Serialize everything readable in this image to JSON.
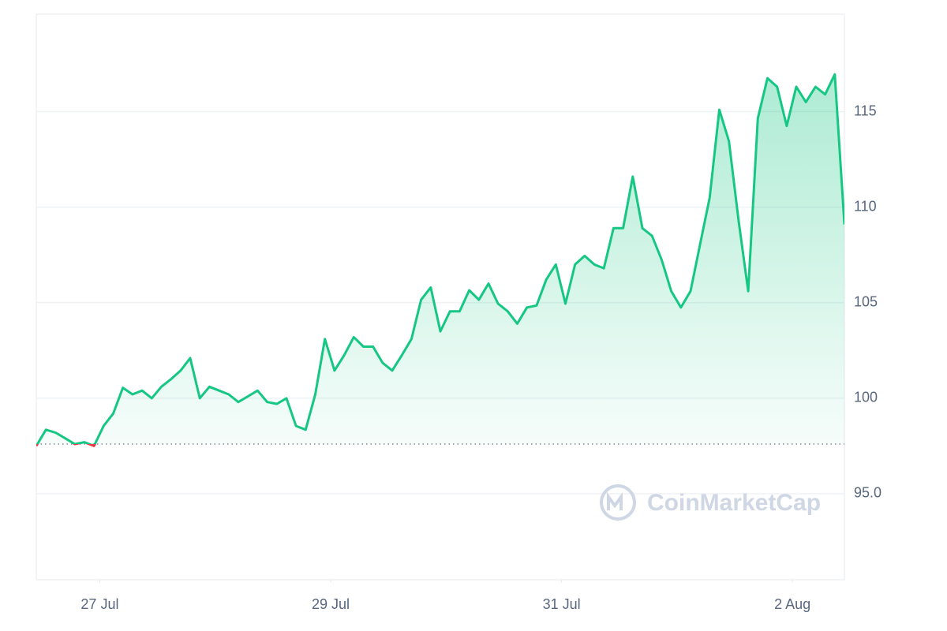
{
  "chart_data": {
    "type": "line",
    "watermark": "CoinMarketCap",
    "values": [
      97.5,
      98.35,
      98.2,
      97.9,
      97.6,
      97.7,
      97.5,
      98.55,
      99.2,
      100.55,
      100.2,
      100.4,
      100,
      100.6,
      101.0,
      101.45,
      102.1,
      100,
      100.6,
      100.4,
      100.2,
      99.8,
      100.1,
      100.4,
      99.8,
      99.7,
      100,
      98.55,
      98.35,
      100.2,
      103.1,
      101.45,
      102.25,
      103.2,
      102.7,
      102.7,
      101.85,
      101.45,
      102.25,
      103.1,
      105.15,
      105.8,
      103.5,
      104.55,
      104.55,
      105.65,
      105.15,
      106,
      104.95,
      104.55,
      103.9,
      104.75,
      104.85,
      106.2,
      107.0,
      104.95,
      107.0,
      107.45,
      107.0,
      106.8,
      108.9,
      108.9,
      111.6,
      108.9,
      108.5,
      107.25,
      105.6,
      104.75,
      105.6,
      108.05,
      110.5,
      115.1,
      113.45,
      109.3,
      105.6,
      114.65,
      116.75,
      116.3,
      114.25,
      116.3,
      115.5,
      116.3,
      115.9,
      116.95,
      109.1
    ],
    "baseline": 97.6,
    "up_color": "#16c784",
    "down_color": "#ea3943",
    "xlim": [
      0,
      84
    ],
    "xticks": [
      {
        "value": 6.6,
        "label": "27 Jul"
      },
      {
        "value": 30.6,
        "label": "29 Jul"
      },
      {
        "value": 54.6,
        "label": "31 Jul"
      },
      {
        "value": 78.6,
        "label": "2 Aug"
      }
    ],
    "ylim": [
      90.5,
      120.1
    ],
    "yticks": [
      {
        "value": 95,
        "label": "95.0"
      },
      100,
      105,
      110,
      115
    ],
    "grid": true
  }
}
